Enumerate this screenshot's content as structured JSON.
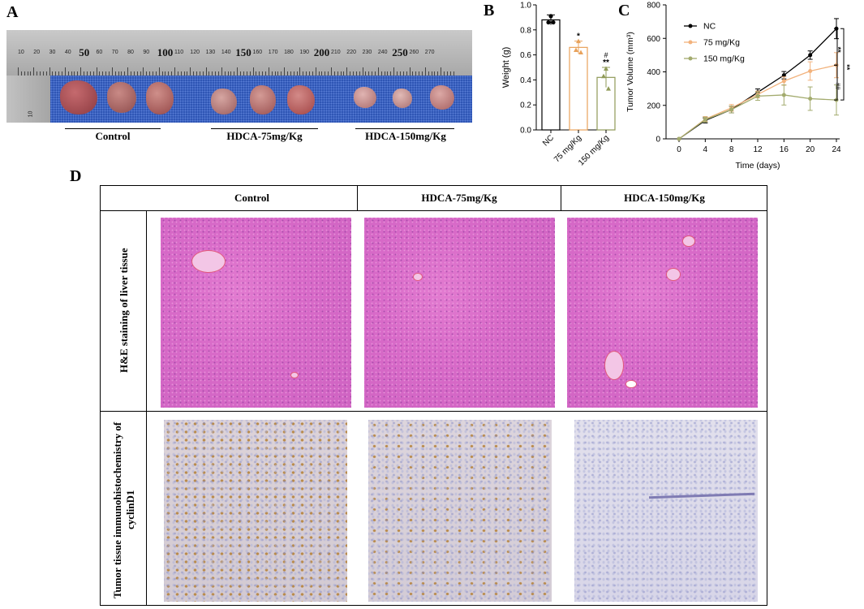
{
  "panels": {
    "a": "A",
    "b": "B",
    "c": "C",
    "d": "D"
  },
  "ruler": {
    "ticks_small": [
      "10",
      "20",
      "30",
      "40",
      "60",
      "70",
      "80",
      "90",
      "110",
      "120",
      "130",
      "140",
      "160",
      "170",
      "180",
      "190",
      "210",
      "220",
      "230",
      "240",
      "260",
      "270"
    ],
    "ticks_big": [
      "50",
      "100",
      "150",
      "200",
      "250"
    ],
    "side_ticks": [
      "10",
      "20"
    ]
  },
  "panelA_groups": [
    "Control",
    "HDCA-75mg/Kg",
    "HDCA-150mg/Kg"
  ],
  "chart_data": [
    {
      "type": "bar",
      "ylabel": "Weight (g)",
      "ylim": [
        0.0,
        1.0
      ],
      "yticks": [
        "0.0",
        "0.2",
        "0.4",
        "0.6",
        "0.8",
        "1.0"
      ],
      "categories": [
        "NC",
        "75 mg/Kg",
        "150 mg/Kg"
      ],
      "values": [
        0.88,
        0.66,
        0.42
      ],
      "errors": [
        0.04,
        0.05,
        0.08
      ],
      "points": [
        [
          0.91,
          0.86,
          0.86
        ],
        [
          0.71,
          0.64,
          0.62
        ],
        [
          0.49,
          0.43,
          0.33
        ]
      ],
      "colors": [
        "#000000",
        "#e8a25b",
        "#8f9a57"
      ],
      "annotations": [
        [
          "",
          ""
        ],
        [
          "",
          "*"
        ],
        [
          "#",
          "**"
        ]
      ]
    },
    {
      "type": "line",
      "xlabel": "Time (days)",
      "ylabel": "Tumor Volume (mm³)",
      "x": [
        0,
        4,
        8,
        12,
        16,
        20,
        24
      ],
      "xticks": [
        "0",
        "4",
        "8",
        "12",
        "16",
        "20",
        "24"
      ],
      "ylim": [
        0,
        800
      ],
      "yticks": [
        "0",
        "200",
        "400",
        "600",
        "800"
      ],
      "series": [
        {
          "name": "NC",
          "color": "#000000",
          "values": [
            0,
            110,
            175,
            278,
            380,
            500,
            658
          ],
          "errors": [
            0,
            15,
            20,
            20,
            22,
            25,
            60
          ]
        },
        {
          "name": "75 mg/Kg",
          "color": "#f2b27c",
          "values": [
            0,
            118,
            185,
            265,
            345,
            405,
            440
          ],
          "errors": [
            0,
            15,
            20,
            20,
            25,
            55,
            75
          ]
        },
        {
          "name": "150 mg/Kg",
          "color": "#a3ab6e",
          "values": [
            0,
            115,
            175,
            255,
            262,
            240,
            232
          ],
          "errors": [
            0,
            15,
            20,
            25,
            60,
            70,
            90
          ]
        }
      ],
      "sig_brackets": [
        "**",
        "**",
        "##"
      ]
    }
  ],
  "tableD": {
    "columns": [
      "Control",
      "HDCA-75mg/Kg",
      "HDCA-150mg/Kg"
    ],
    "rows": [
      "H&E staining of liver tissue",
      "Tumor tissue immunohistochemistry of cyclinD1"
    ]
  }
}
